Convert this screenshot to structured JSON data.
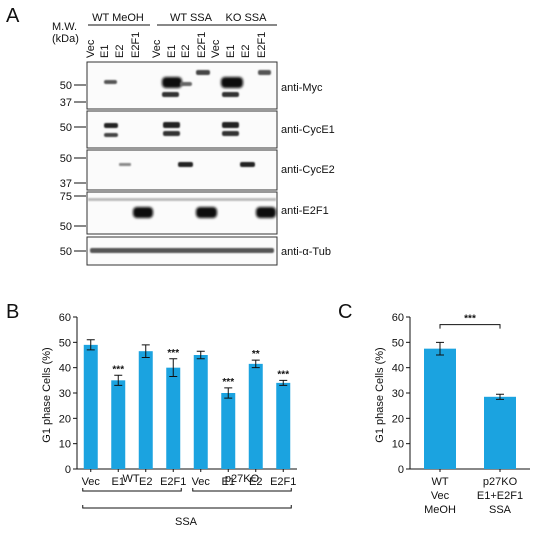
{
  "panel_a": {
    "label": "A",
    "mw_label": "M.W.",
    "kda_label": "(kDa)",
    "groups": [
      "WT MeOH",
      "WT SSA",
      "KO SSA"
    ],
    "lanes": [
      "Vec",
      "E1",
      "E2",
      "E2F1",
      "Vec",
      "E1",
      "E2",
      "E2F1",
      "Vec",
      "E1",
      "E2",
      "E2F1"
    ],
    "blots": [
      {
        "antibody": "anti-Myc",
        "markers": [
          "50",
          "37"
        ]
      },
      {
        "antibody": "anti-CycE1",
        "markers": [
          "50"
        ]
      },
      {
        "antibody": "anti-CycE2",
        "markers": [
          "50",
          "37"
        ]
      },
      {
        "antibody": "anti-E2F1",
        "markers": [
          "75",
          "50"
        ]
      },
      {
        "antibody": "anti-α-Tub",
        "markers": [
          "50"
        ]
      }
    ]
  },
  "chart_data": [
    {
      "panel": "B",
      "type": "bar",
      "ylabel": "G1 phase Cells (%)",
      "ylim": [
        0,
        60
      ],
      "yticks": [
        "0",
        "10",
        "20",
        "30",
        "40",
        "50",
        "60"
      ],
      "categories": [
        "Vec",
        "E1",
        "E2",
        "E2F1",
        "Vec",
        "E1",
        "E2",
        "E2F1"
      ],
      "values": [
        49,
        35,
        46.5,
        40,
        45,
        30,
        41.5,
        34
      ],
      "errors": [
        2,
        2,
        2.5,
        3.5,
        1.5,
        2,
        1.5,
        1
      ],
      "significance": [
        "",
        "***",
        "",
        "***",
        "",
        "***",
        "**",
        "***"
      ],
      "group_labels": [
        "WT",
        "p27KO"
      ],
      "treatment_label": "SSA",
      "bar_color": "#1ba3e0"
    },
    {
      "panel": "C",
      "type": "bar",
      "ylabel": "G1 phase Cells (%)",
      "ylim": [
        0,
        60
      ],
      "yticks": [
        "0",
        "10",
        "20",
        "30",
        "40",
        "50",
        "60"
      ],
      "categories": [
        [
          "WT",
          "Vec",
          "MeOH"
        ],
        [
          "p27KO",
          "E1+E2F1",
          "SSA"
        ]
      ],
      "values": [
        47.5,
        28.5
      ],
      "errors": [
        2.5,
        1
      ],
      "comparison": "***",
      "bar_color": "#1ba3e0"
    }
  ],
  "panel_labels": {
    "b": "B",
    "c": "C"
  }
}
